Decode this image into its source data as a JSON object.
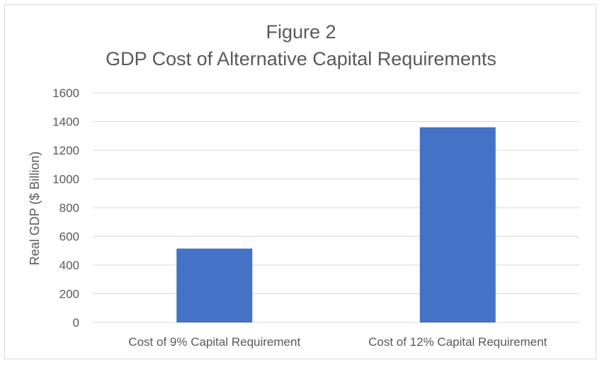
{
  "chart_data": {
    "type": "bar",
    "title_line1": "Figure 2",
    "title_line2": "GDP Cost of  Alternative Capital Requirements",
    "xlabel": "",
    "ylabel": "Real GDP ($ Billion)",
    "categories": [
      "Cost of 9% Capital Requirement",
      "Cost of 12% Capital Requirement"
    ],
    "values": [
      515,
      1360
    ],
    "ylim": [
      0,
      1600
    ],
    "yticks": [
      0,
      200,
      400,
      600,
      800,
      1000,
      1200,
      1400,
      1600
    ],
    "grid": true,
    "legend": "none",
    "bar_color": "#4472c4",
    "grid_color": "#d9d9d9",
    "text_color": "#595959"
  }
}
